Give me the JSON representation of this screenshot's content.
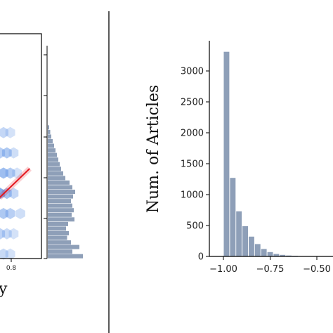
{
  "chart_data": [
    {
      "type": "scatter",
      "subtype": "hexbin-with-marginal-histogram",
      "title": "",
      "xlabel": "y",
      "x_tick_labels": [
        "0.8"
      ],
      "regression_color": "#e4161e",
      "hex_color": "#6f9ee8",
      "marginal_hist_color": "#8e9fb8",
      "hexbins": [
        {
          "x": 0.1,
          "y": 0.56,
          "density": 0.35
        },
        {
          "x": 0.26,
          "y": 0.56,
          "density": 0.2
        },
        {
          "x": 0.02,
          "y": 0.47,
          "density": 0.45
        },
        {
          "x": 0.18,
          "y": 0.47,
          "density": 0.55
        },
        {
          "x": 0.34,
          "y": 0.47,
          "density": 0.25
        },
        {
          "x": 0.1,
          "y": 0.38,
          "density": 0.7
        },
        {
          "x": 0.26,
          "y": 0.38,
          "density": 0.5
        },
        {
          "x": 0.42,
          "y": 0.38,
          "density": 0.2
        },
        {
          "x": 0.02,
          "y": 0.29,
          "density": 0.9
        },
        {
          "x": 0.18,
          "y": 0.29,
          "density": 0.6
        },
        {
          "x": 0.34,
          "y": 0.29,
          "density": 0.35
        },
        {
          "x": 0.1,
          "y": 0.2,
          "density": 0.55
        },
        {
          "x": 0.26,
          "y": 0.2,
          "density": 0.45
        },
        {
          "x": 0.5,
          "y": 0.2,
          "density": 0.25
        },
        {
          "x": 0.02,
          "y": 0.11,
          "density": 0.4
        },
        {
          "x": 0.18,
          "y": 0.11,
          "density": 0.3
        },
        {
          "x": 0.34,
          "y": 0.11,
          "density": 0.2
        },
        {
          "x": 0.1,
          "y": 0.02,
          "density": 0.3
        },
        {
          "x": 0.26,
          "y": 0.02,
          "density": 0.2
        }
      ],
      "regression": {
        "x0": 0.0,
        "y0": 0.27,
        "x1": 0.72,
        "y1": 0.4
      },
      "marginal_hist": [
        0.04,
        0.07,
        0.1,
        0.14,
        0.18,
        0.22,
        0.26,
        0.3,
        0.34,
        0.38,
        0.44,
        0.5,
        0.62,
        0.7,
        0.78,
        0.72,
        0.66,
        0.7,
        0.74,
        0.68,
        0.76,
        0.58,
        0.52,
        0.6,
        0.55,
        0.66,
        0.9,
        0.7,
        1.0
      ]
    },
    {
      "type": "bar",
      "subtype": "histogram",
      "title": "",
      "xlabel": "",
      "ylabel": "Num. of Articles",
      "xlim": [
        -1.05,
        -0.4
      ],
      "ylim": [
        0,
        3500
      ],
      "x_ticks": [
        -1.0,
        -0.75,
        -0.5
      ],
      "x_tick_labels": [
        "−1.00",
        "−0.75",
        "−0.50"
      ],
      "y_ticks": [
        0,
        500,
        1000,
        1500,
        2000,
        2500,
        3000
      ],
      "y_tick_labels": [
        "0",
        "500",
        "1000",
        "1500",
        "2000",
        "2500",
        "3000"
      ],
      "bar_color": "#8e9fb8",
      "bin_width": 0.0333,
      "bin_starts": [
        -1.0,
        -0.9667,
        -0.9333,
        -0.9,
        -0.8667,
        -0.8333,
        -0.8,
        -0.7667,
        -0.7333,
        -0.7,
        -0.6667,
        -0.6333,
        -0.6,
        -0.5667
      ],
      "values": [
        3310,
        1270,
        730,
        490,
        320,
        200,
        120,
        70,
        40,
        25,
        15,
        10,
        6,
        4
      ]
    }
  ]
}
